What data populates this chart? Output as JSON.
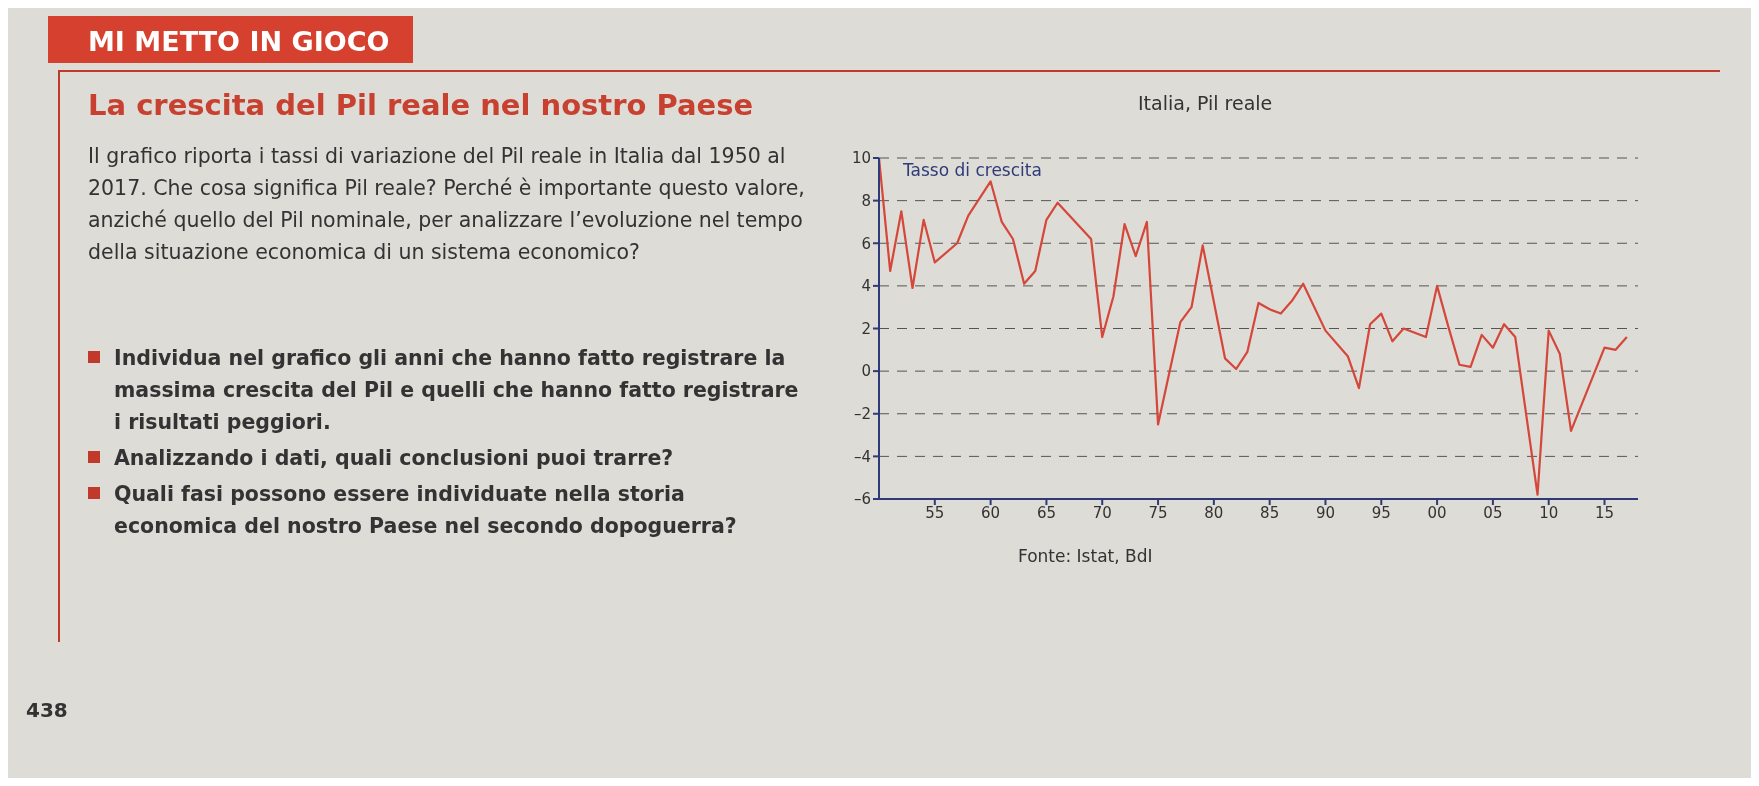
{
  "chart_data": {
    "type": "line",
    "title": "La crescita del Pil reale nel nostro Paese",
    "subtitle": "Italia, Pil reale",
    "ylabel": "Tasso di crescita",
    "annotations": [
      "MI METTO IN GIOCO",
      "Il grafico riporta i tassi di variazione del Pil reale in Italia dal 1950 al 2017. Che cosa significa Pil reale? Perché è importante questo valore, anziché quello del Pil nominale, per analizzare l’evoluzione nel tempo della situazione economica di un sistema economico?",
      "Individua nel grafico gli anni che hanno fatto registrare la massima crescita del Pil e quelli che hanno fatto registrare i risultati peggiori.",
      "Analizzando i dati, quali conclusioni puoi trarre?",
      "Quali fasi possono essere individuate nella storia economica del nostro Paese nel secondo dopoguerra?",
      "Fonte: Istat, BdI",
      "438"
    ],
    "x": [
      1950,
      1951,
      1952,
      1953,
      1954,
      1955,
      1957,
      1958,
      1960,
      1961,
      1962,
      1963,
      1964,
      1965,
      1966,
      1969,
      1970,
      1971,
      1972,
      1973,
      1974,
      1975,
      1977,
      1978,
      1979,
      1981,
      1982,
      1983,
      1984,
      1985,
      1986,
      1987,
      1988,
      1990,
      1992,
      1993,
      1994,
      1995,
      1996,
      1997,
      1999,
      2000,
      2001,
      2002,
      2003,
      2004,
      2005,
      2006,
      2007,
      2009,
      2010,
      2011,
      2012,
      2014,
      2015,
      2016,
      2017
    ],
    "series": [
      {
        "color": "#d4473a",
        "values": [
          10.0,
          4.7,
          7.5,
          3.9,
          7.1,
          5.1,
          6.0,
          7.3,
          8.9,
          7.0,
          6.2,
          4.1,
          4.7,
          7.1,
          7.9,
          6.2,
          1.6,
          3.5,
          6.9,
          5.4,
          7.0,
          -2.5,
          2.3,
          3.0,
          5.9,
          0.6,
          0.1,
          0.9,
          3.2,
          2.9,
          2.7,
          3.3,
          4.1,
          1.9,
          0.7,
          -0.8,
          2.2,
          2.7,
          1.4,
          2.0,
          1.6,
          4.0,
          2.1,
          0.3,
          0.2,
          1.7,
          1.1,
          2.2,
          1.6,
          -5.8,
          1.9,
          0.8,
          -2.8,
          -0.2,
          1.1,
          1.0,
          1.6
        ]
      }
    ],
    "xlim": [
      1950,
      2018
    ],
    "xticks": [
      {
        "value": 1955,
        "label": "55"
      },
      {
        "value": 1960,
        "label": "60"
      },
      {
        "value": 1965,
        "label": "65"
      },
      {
        "value": 1970,
        "label": "70"
      },
      {
        "value": 1975,
        "label": "75"
      },
      {
        "value": 1980,
        "label": "80"
      },
      {
        "value": 1985,
        "label": "85"
      },
      {
        "value": 1990,
        "label": "90"
      },
      {
        "value": 1995,
        "label": "95"
      },
      {
        "value": 2000,
        "label": "00"
      },
      {
        "value": 2005,
        "label": "05"
      },
      {
        "value": 2010,
        "label": "10"
      },
      {
        "value": 2015,
        "label": "15"
      }
    ],
    "ylim": [
      -6,
      10
    ],
    "yticks": [
      {
        "value": -6,
        "label": "–6"
      },
      {
        "value": -4,
        "label": "–4"
      },
      {
        "value": -2,
        "label": "–2"
      },
      0,
      2,
      4,
      6,
      8,
      10
    ],
    "grid": "y",
    "legend": false,
    "marker": "none",
    "line_style": "solid"
  }
}
